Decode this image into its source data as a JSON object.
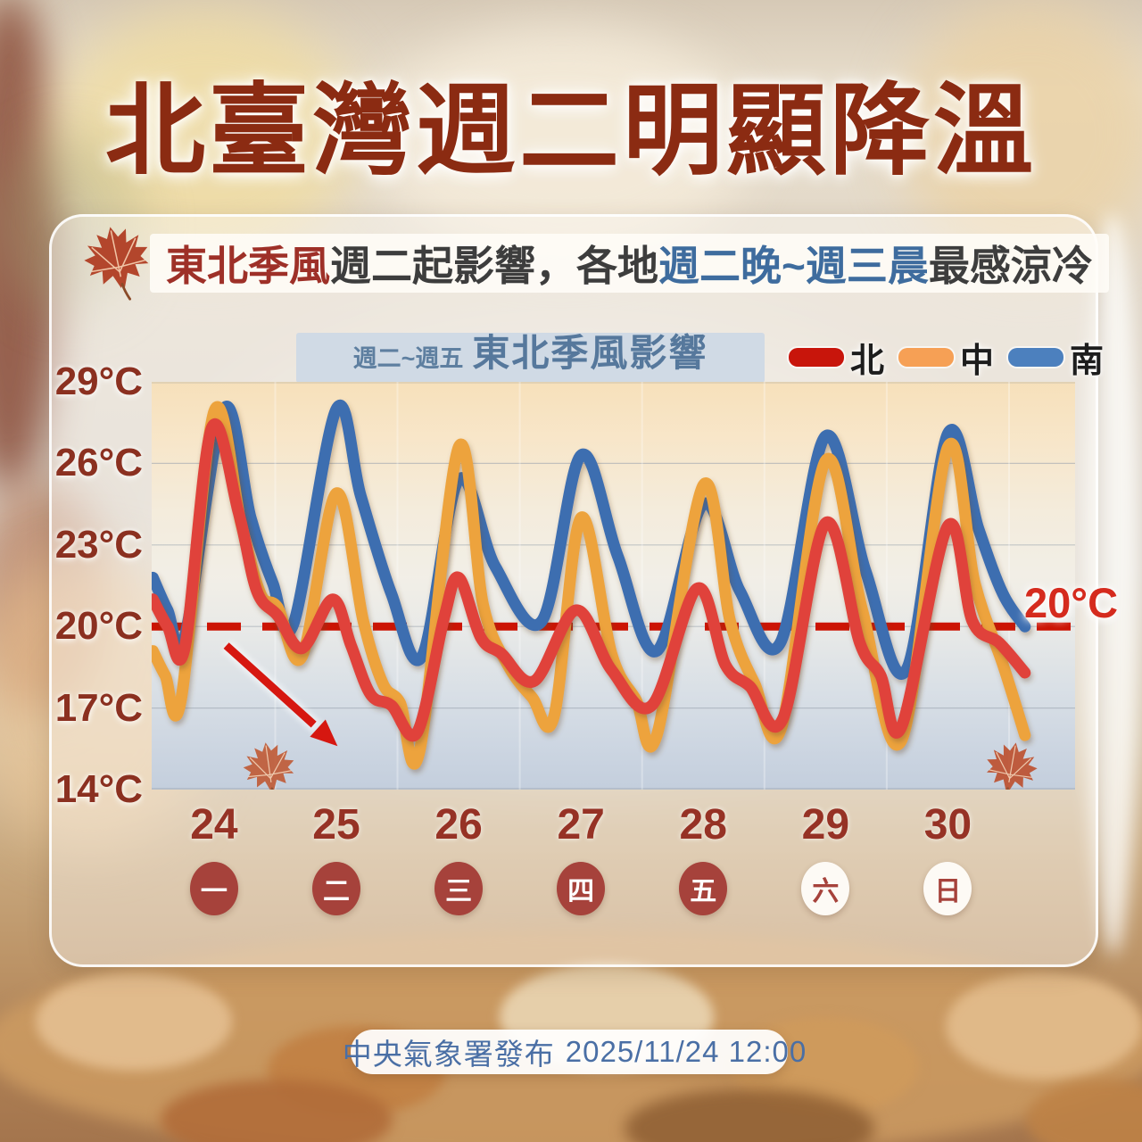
{
  "title": "北臺灣週二明顯降溫",
  "subtitle": {
    "segments": [
      {
        "text": "東北季風",
        "color": "#9E3028"
      },
      {
        "text": "週二起影響，",
        "color": "#3D3D3D"
      },
      {
        "text": " 各地 ",
        "color": "#3D3D3D"
      },
      {
        "text": "週二晚~週三晨",
        "color": "#3E6C9E"
      },
      {
        "text": " 最感涼冷",
        "color": "#3D3D3D"
      }
    ]
  },
  "chart_header": {
    "period": "週二~週五",
    "label": "東北季風影響"
  },
  "legend": [
    {
      "name": "北",
      "color": "#C8150B"
    },
    {
      "name": "中",
      "color": "#F6A055"
    },
    {
      "name": "南",
      "color": "#4C80BE"
    }
  ],
  "chart_data": {
    "type": "line",
    "title": "東北季風影響 (週二~週五)",
    "y_unit": "°C",
    "y_range": [
      14,
      29
    ],
    "x_range": [
      23.49,
      31.04
    ],
    "y_ticks": [
      {
        "label": "29°C",
        "value": 29
      },
      {
        "label": "26°C",
        "value": 26
      },
      {
        "label": "23°C",
        "value": 23
      },
      {
        "label": "20°C",
        "value": 20
      },
      {
        "label": "17°C",
        "value": 17
      },
      {
        "label": "14°C",
        "value": 14
      }
    ],
    "gridlines": [
      26,
      23,
      20,
      17
    ],
    "day_boundaries": [
      24.5,
      25.5,
      26.5,
      27.5,
      28.5,
      29.5,
      30.5
    ],
    "x_days": [
      {
        "date": "24",
        "dow": "一",
        "value": 24,
        "weekend": false
      },
      {
        "date": "25",
        "dow": "二",
        "value": 25,
        "weekend": false
      },
      {
        "date": "26",
        "dow": "三",
        "value": 26,
        "weekend": false
      },
      {
        "date": "27",
        "dow": "四",
        "value": 27,
        "weekend": false
      },
      {
        "date": "28",
        "dow": "五",
        "value": 28,
        "weekend": false
      },
      {
        "date": "29",
        "dow": "六",
        "value": 29,
        "weekend": true
      },
      {
        "date": "30",
        "dow": "日",
        "value": 30,
        "weekend": true
      }
    ],
    "threshold": {
      "value": 20,
      "label": "20°C",
      "color": "#CC1404"
    },
    "series": [
      {
        "name": "南",
        "region": "south",
        "color": "#3E6EB0",
        "points": [
          [
            23.5,
            21.8
          ],
          [
            23.62,
            20.6
          ],
          [
            23.76,
            19.6
          ],
          [
            24.08,
            28.0
          ],
          [
            24.3,
            24.0
          ],
          [
            24.48,
            21.6
          ],
          [
            24.65,
            20.1
          ],
          [
            25.0,
            28.0
          ],
          [
            25.2,
            24.8
          ],
          [
            25.45,
            21.2
          ],
          [
            25.7,
            18.9
          ],
          [
            26.0,
            25.4
          ],
          [
            26.3,
            22.2
          ],
          [
            26.68,
            20.2
          ],
          [
            27.0,
            26.3
          ],
          [
            27.3,
            22.6
          ],
          [
            27.62,
            19.1
          ],
          [
            28.0,
            24.5
          ],
          [
            28.3,
            21.3
          ],
          [
            28.63,
            19.4
          ],
          [
            29.0,
            27.0
          ],
          [
            29.33,
            22.0
          ],
          [
            29.66,
            18.4
          ],
          [
            30.0,
            27.1
          ],
          [
            30.25,
            23.6
          ],
          [
            30.45,
            21.2
          ],
          [
            30.63,
            20.0
          ]
        ]
      },
      {
        "name": "中",
        "region": "central",
        "color": "#EDA33C",
        "points": [
          [
            23.5,
            19.1
          ],
          [
            23.6,
            18.2
          ],
          [
            23.73,
            17.3
          ],
          [
            24.0,
            27.9
          ],
          [
            24.22,
            23.8
          ],
          [
            24.38,
            21.2
          ],
          [
            24.52,
            20.7
          ],
          [
            24.72,
            18.9
          ],
          [
            25.0,
            24.9
          ],
          [
            25.22,
            20.2
          ],
          [
            25.38,
            17.9
          ],
          [
            25.52,
            17.2
          ],
          [
            25.68,
            15.4
          ],
          [
            26.0,
            26.6
          ],
          [
            26.2,
            20.8
          ],
          [
            26.4,
            18.6
          ],
          [
            26.6,
            17.4
          ],
          [
            26.78,
            16.7
          ],
          [
            27.0,
            24.0
          ],
          [
            27.25,
            19.0
          ],
          [
            27.45,
            17.3
          ],
          [
            27.62,
            16.0
          ],
          [
            28.0,
            25.2
          ],
          [
            28.22,
            20.2
          ],
          [
            28.42,
            17.9
          ],
          [
            28.64,
            16.3
          ],
          [
            29.0,
            26.1
          ],
          [
            29.3,
            20.6
          ],
          [
            29.62,
            15.8
          ],
          [
            30.0,
            26.6
          ],
          [
            30.22,
            21.6
          ],
          [
            30.45,
            18.6
          ],
          [
            30.63,
            16.0
          ]
        ]
      },
      {
        "name": "北",
        "region": "north",
        "color": "#E0423A",
        "points": [
          [
            23.5,
            21.0
          ],
          [
            23.62,
            20.0
          ],
          [
            23.76,
            19.2
          ],
          [
            23.98,
            27.3
          ],
          [
            24.2,
            24.2
          ],
          [
            24.35,
            21.3
          ],
          [
            24.52,
            20.4
          ],
          [
            24.72,
            19.2
          ],
          [
            24.97,
            21.0
          ],
          [
            25.12,
            19.3
          ],
          [
            25.28,
            17.5
          ],
          [
            25.45,
            17.1
          ],
          [
            25.66,
            16.1
          ],
          [
            25.88,
            20.3
          ],
          [
            26.0,
            21.8
          ],
          [
            26.18,
            19.6
          ],
          [
            26.35,
            19.0
          ],
          [
            26.62,
            18.0
          ],
          [
            26.96,
            20.6
          ],
          [
            27.25,
            18.4
          ],
          [
            27.58,
            17.1
          ],
          [
            27.95,
            21.4
          ],
          [
            28.18,
            18.6
          ],
          [
            28.38,
            17.8
          ],
          [
            28.65,
            16.6
          ],
          [
            29.0,
            23.8
          ],
          [
            29.28,
            19.4
          ],
          [
            29.45,
            18.2
          ],
          [
            29.62,
            16.3
          ],
          [
            30.0,
            23.7
          ],
          [
            30.2,
            20.2
          ],
          [
            30.42,
            19.4
          ],
          [
            30.63,
            18.3
          ]
        ]
      }
    ],
    "annotations": {
      "arrow": {
        "from": [
          24.1,
          19.3
        ],
        "to": [
          25.01,
          15.6
        ],
        "color": "#D61710"
      }
    },
    "decorations": {
      "leaves": [
        {
          "d": 24.45,
          "t": 14.8,
          "rotate": -8,
          "scale": 0.55,
          "color": "#C05A35"
        },
        {
          "d": 30.52,
          "t": 14.8,
          "rotate": 10,
          "scale": 0.55,
          "color": "#BD4F2D"
        }
      ]
    }
  },
  "footer": {
    "agency": "中央氣象署發布",
    "datetime": "2025/11/24 12:00"
  }
}
